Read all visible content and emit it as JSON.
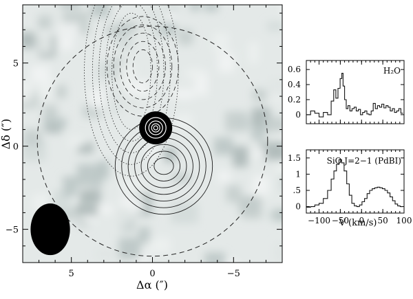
{
  "chart_data": [
    {
      "type": "contour",
      "xlabel": "Δα (″)",
      "ylabel": "Δδ (″)",
      "xlim": [
        8,
        -8
      ],
      "ylim": [
        -7,
        8.5
      ],
      "x_ticks": [
        5,
        0,
        -5
      ],
      "y_ticks": [
        5,
        0,
        -5
      ],
      "x_ticklabels": [
        "5",
        "0",
        "−5"
      ],
      "y_ticklabels": [
        "5",
        "0",
        "−5"
      ],
      "background": "greyscale continuum map",
      "primary_beam_circle": {
        "center": [
          0,
          0.3
        ],
        "radius": 7.1,
        "style": "dashed"
      },
      "beam": {
        "center": [
          6.3,
          -5.0
        ],
        "major_axis": 2.3,
        "minor_axis": 1.8,
        "position_angle": 0
      },
      "continuum_peak": {
        "x": -0.2,
        "y": 1.1
      },
      "contour_sets": [
        {
          "style": "dotted",
          "center": [
            1.3,
            4.5
          ],
          "levels_semi_axes": [
            [
              1.2,
              3.5
            ],
            [
              1.6,
              4.2
            ],
            [
              2.0,
              4.9
            ],
            [
              2.4,
              5.6
            ],
            [
              2.9,
              6.3
            ]
          ]
        },
        {
          "style": "dashed",
          "center": [
            0.6,
            4.8
          ],
          "levels_semi_axes": [
            [
              0.6,
              1.0
            ],
            [
              1.0,
              1.5
            ],
            [
              1.4,
              2.0
            ],
            [
              1.8,
              2.5
            ],
            [
              2.2,
              3.0
            ]
          ]
        },
        {
          "style": "solid",
          "center": [
            -0.7,
            -1.2
          ],
          "levels_semi_axes": [
            [
              0.6,
              0.5
            ],
            [
              1.0,
              0.9
            ],
            [
              1.4,
              1.3
            ],
            [
              1.8,
              1.7
            ],
            [
              2.2,
              2.1
            ],
            [
              2.6,
              2.5
            ],
            [
              3.0,
              2.9
            ]
          ]
        }
      ],
      "colors": {
        "frame": "#000000",
        "map_light": "#eef1f0",
        "map_dark": "#a9b5b4",
        "source": "#000000"
      }
    },
    {
      "type": "line",
      "step": true,
      "label": "H₂O",
      "xlim": [
        -130,
        100
      ],
      "ylim": [
        -0.12,
        0.72
      ],
      "y_ticks": [
        0,
        0.2,
        0.4,
        0.6
      ],
      "y_ticklabels": [
        "0",
        "0.2",
        "0.4",
        "0.6"
      ],
      "x": [
        -125,
        -115,
        -105,
        -95,
        -85,
        -75,
        -68,
        -63,
        -58,
        -53,
        -48,
        -45,
        -42,
        -38,
        -34,
        -30,
        -25,
        -20,
        -15,
        -10,
        -5,
        0,
        5,
        10,
        15,
        20,
        25,
        30,
        35,
        40,
        45,
        50,
        55,
        60,
        65,
        70,
        75,
        80,
        85,
        90,
        95
      ],
      "values": [
        0.0,
        0.05,
        0.02,
        -0.03,
        0.03,
        0.0,
        0.18,
        0.33,
        0.22,
        0.35,
        0.48,
        0.55,
        0.38,
        0.2,
        0.08,
        0.12,
        0.05,
        0.08,
        0.1,
        0.05,
        0.07,
        0.0,
        0.03,
        0.05,
        0.01,
        0.0,
        0.05,
        0.15,
        0.08,
        0.12,
        0.1,
        0.14,
        0.09,
        0.12,
        0.1,
        0.05,
        0.08,
        0.03,
        0.05,
        0.08,
        0.02
      ]
    },
    {
      "type": "line",
      "step": true,
      "label": "SiO J=2−1 (PdBI)",
      "xlabel": "V (km/s)",
      "xlim": [
        -130,
        100
      ],
      "ylim": [
        -0.2,
        1.75
      ],
      "x_ticks": [
        -100,
        -50,
        0,
        50,
        100
      ],
      "x_ticklabels": [
        "−100",
        "−50",
        "0",
        "50",
        "100"
      ],
      "y_ticks": [
        0,
        0.5,
        1,
        1.5
      ],
      "y_ticklabels": [
        "0",
        ".5",
        "1",
        "1.5"
      ],
      "x": [
        -125,
        -115,
        -105,
        -95,
        -85,
        -75,
        -68,
        -62,
        -56,
        -50,
        -44,
        -38,
        -32,
        -26,
        -20,
        -14,
        -8,
        -2,
        4,
        10,
        16,
        22,
        28,
        34,
        40,
        46,
        52,
        58,
        64,
        70,
        76,
        82,
        88,
        94
      ],
      "values": [
        -0.02,
        0.0,
        0.05,
        0.1,
        0.25,
        0.5,
        0.85,
        1.1,
        1.3,
        1.45,
        1.35,
        1.1,
        0.7,
        0.35,
        0.1,
        0.02,
        0.0,
        0.05,
        0.15,
        0.25,
        0.4,
        0.5,
        0.55,
        0.58,
        0.6,
        0.58,
        0.55,
        0.5,
        0.42,
        0.3,
        0.18,
        0.08,
        0.02,
        0.0
      ]
    }
  ]
}
